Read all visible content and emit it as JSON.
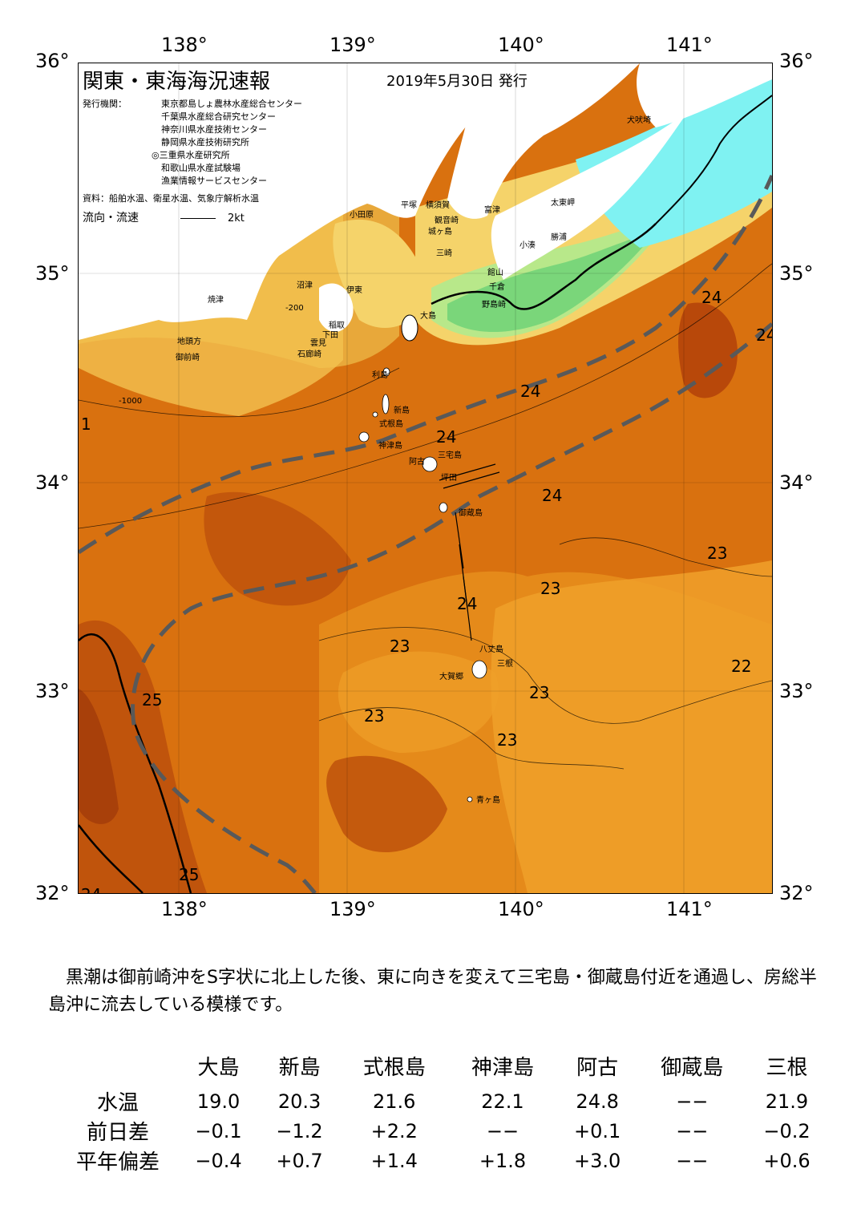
{
  "axes": {
    "lon_labels": [
      "138°",
      "139°",
      "140°",
      "141°"
    ],
    "lat_labels": [
      "36°",
      "35°",
      "34°",
      "33°",
      "32°"
    ]
  },
  "header": {
    "title": "関東・東海海況速報",
    "date": "2019年5月30日 発行",
    "issuer_label": "発行機関：",
    "issuers": [
      "東京都島しょ農林水産総合センター",
      "千葉県水産総合研究センター",
      "神奈川県水産技術センター",
      "静岡県水産技術研究所",
      "◎三重県水産研究所",
      "和歌山県水産試験場",
      "漁業情報サービスセンター"
    ],
    "sources": "資料：船舶水温、衛星水温、気象庁解析水温",
    "flow_legend_label": "流向・流速",
    "flow_legend_value": "2kt"
  },
  "places": [
    "犬吠埼",
    "太東岬",
    "勝浦",
    "小湊",
    "富津",
    "横須賀",
    "平塚",
    "小田原",
    "観音崎",
    "城ヶ島",
    "三崎",
    "館山",
    "千倉",
    "野島崎",
    "大島",
    "沼津",
    "伊東",
    "焼津",
    "稲取",
    "下田",
    "雲見",
    "石廊崎",
    "地頭方",
    "御前崎",
    "利島",
    "新島",
    "式根島",
    "神津島",
    "三宅島",
    "阿古",
    "坪田",
    "御蔵島",
    "八丈島",
    "三根",
    "大賀郷",
    "青ヶ島"
  ],
  "isotherm_labels": [
    "24",
    "24",
    "24",
    "24",
    "24",
    "24",
    "23",
    "23",
    "23",
    "23",
    "23",
    "23",
    "23",
    "22",
    "25",
    "25",
    "24",
    "1"
  ],
  "contour_labels": [
    "-200",
    "-1000"
  ],
  "colors": {
    "kuroshio_axis": "#595959",
    "very_warm": "#c0540c",
    "warm": "#d9710f",
    "mid": "#e58a1a",
    "cool_orange": "#f0a02a",
    "yellow": "#f5d36a",
    "light_green": "#b8e88a",
    "green": "#7ad67a",
    "cyan": "#7ff2f2",
    "land": "#ffffff"
  },
  "summary": "　黒潮は御前崎沖をS字状に北上した後、東に向きを変えて三宅島・御蔵島付近を通過し、房総半島沖に流去している模様です。",
  "table": {
    "columns": [
      "大島",
      "新島",
      "式根島",
      "神津島",
      "阿古",
      "御蔵島",
      "三根"
    ],
    "rows": [
      {
        "label": "水温",
        "values": [
          "19.0",
          "20.3",
          "21.6",
          "22.1",
          "24.8",
          "−−",
          "21.9"
        ]
      },
      {
        "label": "前日差",
        "values": [
          "−0.1",
          "−1.2",
          "+2.2",
          "−−",
          "+0.1",
          "−−",
          "−0.2"
        ]
      },
      {
        "label": "平年偏差",
        "values": [
          "−0.4",
          "+0.7",
          "+1.4",
          "+1.8",
          "+3.0",
          "−−",
          "+0.6"
        ]
      }
    ]
  }
}
